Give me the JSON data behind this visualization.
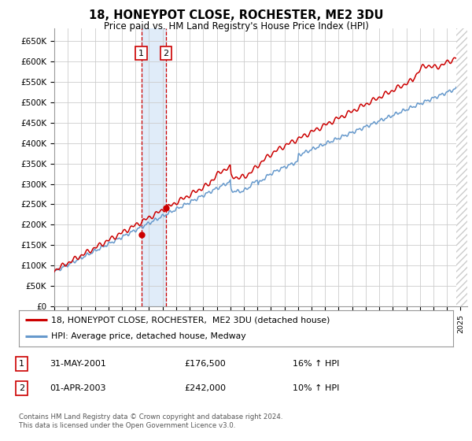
{
  "title": "18, HONEYPOT CLOSE, ROCHESTER, ME2 3DU",
  "subtitle": "Price paid vs. HM Land Registry's House Price Index (HPI)",
  "ylim": [
    0,
    680000
  ],
  "xlim_start": 1995.0,
  "xlim_end": 2025.5,
  "sale1_date": 2001.42,
  "sale1_price": 176500,
  "sale1_label": "1",
  "sale2_date": 2003.25,
  "sale2_price": 242000,
  "sale2_label": "2",
  "legend_line1": "18, HONEYPOT CLOSE, ROCHESTER,  ME2 3DU (detached house)",
  "legend_line2": "HPI: Average price, detached house, Medway",
  "table_row1": [
    "1",
    "31-MAY-2001",
    "£176,500",
    "16% ↑ HPI"
  ],
  "table_row2": [
    "2",
    "01-APR-2003",
    "£242,000",
    "10% ↑ HPI"
  ],
  "footnote": "Contains HM Land Registry data © Crown copyright and database right 2024.\nThis data is licensed under the Open Government Licence v3.0.",
  "hpi_color": "#6699cc",
  "price_color": "#cc0000",
  "shade_color": "#cce0f5",
  "grid_color": "#cccccc",
  "bg_color": "#ffffff",
  "hatch_color": "#cccccc"
}
